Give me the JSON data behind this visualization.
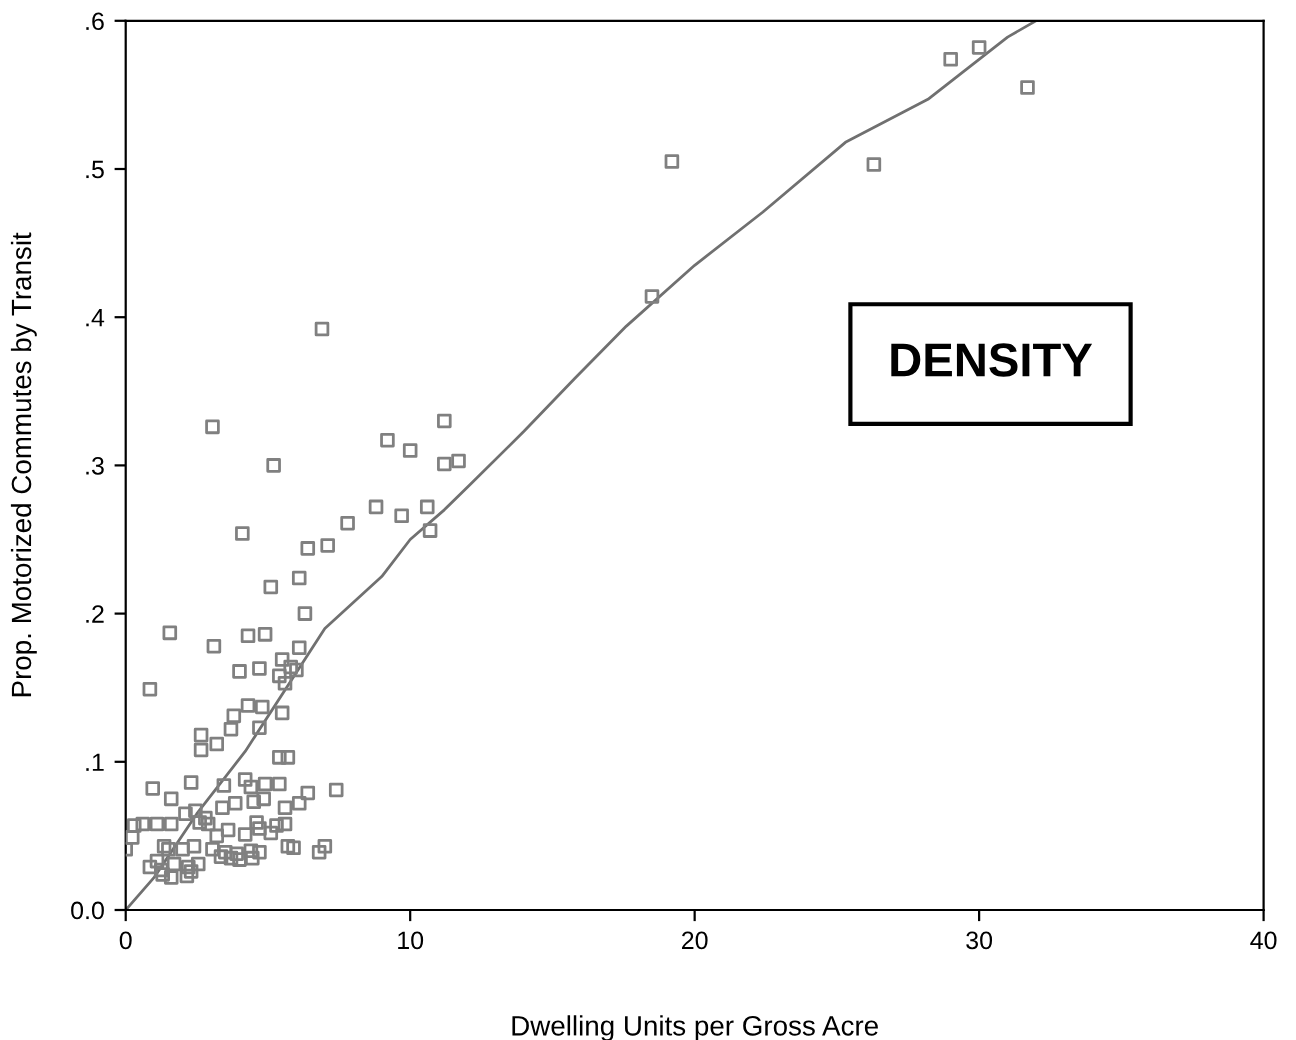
{
  "chart_data": {
    "type": "scatter",
    "xlabel": "Dwelling Units per Gross Acre",
    "ylabel": "Prop. Motorized Commutes by Transit",
    "annotations": [
      "DENSITY"
    ],
    "xlim": [
      0,
      40
    ],
    "ylim": [
      0,
      0.6
    ],
    "xticks": [
      0,
      10,
      20,
      30,
      40
    ],
    "yticks": [
      {
        "value": 0,
        "label": "0.0"
      },
      {
        "value": 0.1,
        "label": ".1"
      },
      {
        "value": 0.2,
        "label": ".2"
      },
      {
        "value": 0.3,
        "label": ".3"
      },
      {
        "value": 0.4,
        "label": ".4"
      },
      {
        "value": 0.5,
        "label": ".5"
      },
      {
        "value": 0.6,
        "label": ".6"
      }
    ],
    "grid": false,
    "legend": false,
    "series": [
      {
        "color": "#808080",
        "marker": "square",
        "x": [
          19.2,
          26.3,
          29.0,
          30.0,
          31.7,
          18.5,
          6.9,
          3.05,
          11.2,
          9.2,
          10.0,
          5.2,
          11.2,
          11.7,
          8.8,
          10.6,
          9.7,
          10.7,
          7.8,
          4.1,
          6.4,
          7.1,
          5.1,
          6.1,
          6.3,
          1.55,
          3.1,
          4.3,
          4.9,
          6.1,
          5.5,
          4.0,
          4.7,
          5.4,
          5.8,
          6.0,
          5.6,
          0.85,
          4.3,
          4.8,
          5.5,
          3.8,
          3.7,
          4.7,
          2.65,
          2.65,
          3.2,
          5.4,
          5.7,
          0.95,
          2.3,
          3.45,
          4.2,
          4.4,
          4.9,
          5.4,
          6.4,
          7.4,
          1.6,
          3.4,
          3.85,
          4.5,
          4.85,
          5.6,
          6.1,
          2.1,
          2.45,
          2.8,
          2.9,
          2.6,
          0.3,
          0.6,
          1.1,
          1.6,
          3.6,
          4.6,
          4.7,
          5.1,
          5.3,
          5.6,
          0.23,
          3.2,
          4.2,
          0,
          1.35,
          1.5,
          2.0,
          2.4,
          3.05,
          3.5,
          3.9,
          4.4,
          4.7,
          5.7,
          5.9,
          7.0,
          6.8,
          0.85,
          1.1,
          1.7,
          2.2,
          2.55,
          3.35,
          3.7,
          4.0,
          4.45,
          1.3,
          1.6,
          2.15,
          2.3,
          1.25
        ],
        "values": [
          0.505,
          0.503,
          0.574,
          0.582,
          0.555,
          0.414,
          0.392,
          0.326,
          0.33,
          0.317,
          0.31,
          0.3,
          0.301,
          0.303,
          0.272,
          0.272,
          0.266,
          0.256,
          0.261,
          0.254,
          0.244,
          0.246,
          0.218,
          0.224,
          0.2,
          0.187,
          0.178,
          0.185,
          0.186,
          0.177,
          0.169,
          0.161,
          0.163,
          0.158,
          0.164,
          0.162,
          0.153,
          0.149,
          0.138,
          0.137,
          0.133,
          0.131,
          0.122,
          0.123,
          0.118,
          0.108,
          0.112,
          0.103,
          0.103,
          0.082,
          0.086,
          0.084,
          0.088,
          0.083,
          0.085,
          0.085,
          0.079,
          0.081,
          0.075,
          0.069,
          0.072,
          0.073,
          0.075,
          0.069,
          0.072,
          0.065,
          0.067,
          0.062,
          0.058,
          0.059,
          0.057,
          0.058,
          0.058,
          0.058,
          0.054,
          0.059,
          0.055,
          0.052,
          0.057,
          0.058,
          0.049,
          0.05,
          0.051,
          0.041,
          0.043,
          0.041,
          0.041,
          0.043,
          0.041,
          0.039,
          0.038,
          0.04,
          0.039,
          0.043,
          0.042,
          0.043,
          0.039,
          0.029,
          0.033,
          0.031,
          0.029,
          0.031,
          0.036,
          0.035,
          0.034,
          0.035,
          0.024,
          0.022,
          0.023,
          0.026,
          0.027
        ]
      },
      {
        "type": "line",
        "color": "#707070",
        "marker": "none",
        "line_style": "solid",
        "x": [
          0,
          1,
          2.5,
          4.2,
          7,
          9,
          10,
          11.2,
          12.1,
          14,
          15.8,
          17.6,
          20,
          22.4,
          25.3,
          28.2,
          31.0,
          32.0
        ],
        "values": [
          0,
          0.022,
          0.065,
          0.107,
          0.19,
          0.225,
          0.25,
          0.27,
          0.287,
          0.323,
          0.359,
          0.394,
          0.435,
          0.471,
          0.518,
          0.547,
          0.589,
          0.6
        ]
      }
    ]
  }
}
